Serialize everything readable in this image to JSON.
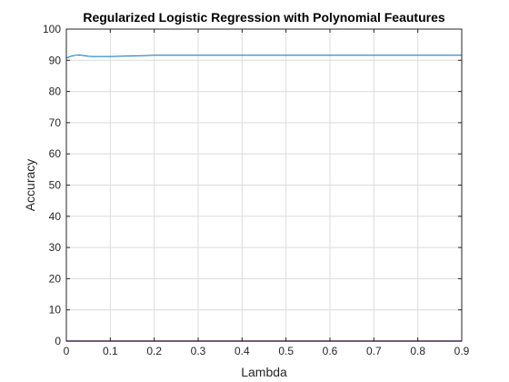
{
  "chart_data": {
    "type": "line",
    "title": "Regularized Logistic Regression with Polynomial Feautures",
    "xlabel": "Lambda",
    "ylabel": "Accuracy",
    "xlim": [
      0,
      0.9
    ],
    "ylim": [
      0,
      100
    ],
    "xticks": [
      "0",
      "0.1",
      "0.2",
      "0.3",
      "0.4",
      "0.5",
      "0.6",
      "0.7",
      "0.8",
      "0.9"
    ],
    "yticks": [
      "0",
      "10",
      "20",
      "30",
      "40",
      "50",
      "60",
      "70",
      "80",
      "90",
      "100"
    ],
    "grid": true,
    "legend": "none",
    "series": [
      {
        "color": "#0072bd",
        "x": [
          0,
          0.005,
          0.01,
          0.02,
          0.03,
          0.04,
          0.05,
          0.06,
          0.08,
          0.1,
          0.12,
          0.15,
          0.18,
          0.2,
          0.25,
          0.3,
          0.4,
          0.5,
          0.6,
          0.7,
          0.8,
          0.9
        ],
        "y": [
          90.7,
          91.0,
          91.3,
          91.6,
          91.7,
          91.5,
          91.3,
          91.2,
          91.2,
          91.2,
          91.3,
          91.4,
          91.5,
          91.6,
          91.6,
          91.6,
          91.6,
          91.6,
          91.6,
          91.6,
          91.6,
          91.6
        ]
      },
      {
        "color": "#7e2f8e",
        "x": [
          0,
          0.9
        ],
        "y": [
          0,
          0
        ]
      }
    ]
  }
}
